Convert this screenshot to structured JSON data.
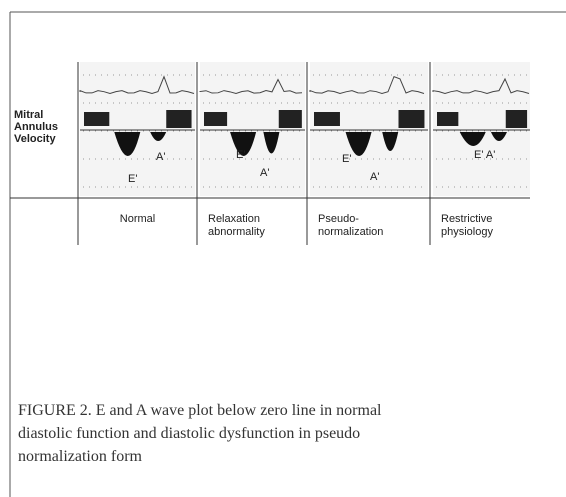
{
  "figure": {
    "row_label": [
      "Mitral",
      "Annulus",
      "Velocity"
    ],
    "panels": [
      {
        "label": [
          "Normal"
        ],
        "waves": [
          "E'",
          "A'"
        ]
      },
      {
        "label": [
          "Relaxation",
          "abnormality"
        ],
        "waves": [
          "E'",
          "A'"
        ]
      },
      {
        "label": [
          "Pseudo-",
          "normalization"
        ],
        "waves": [
          "E'",
          "A'"
        ]
      },
      {
        "label": [
          "Restrictive",
          "physiology"
        ],
        "waves": [
          "E' A'"
        ]
      }
    ],
    "caption": [
      "FIGURE 2.  E and A wave plot below zero line in normal",
      "diastolic function and diastolic dysfunction in pseudo",
      "normalization form"
    ]
  }
}
